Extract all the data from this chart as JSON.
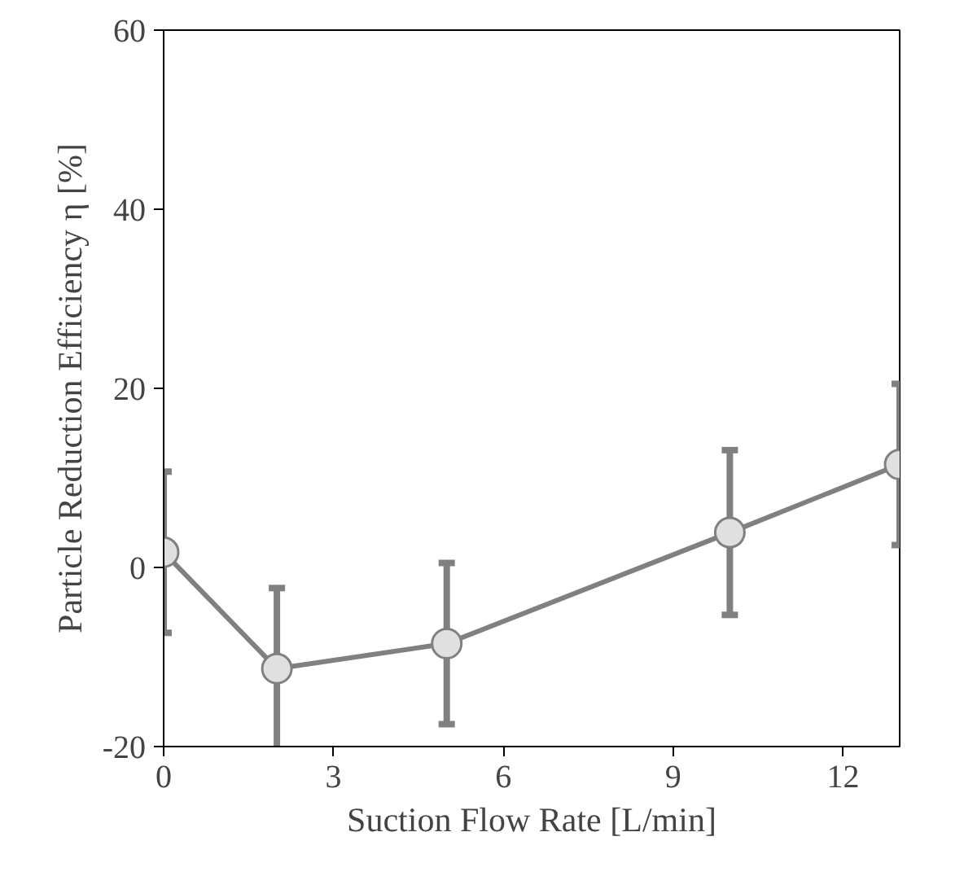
{
  "chart_data": {
    "type": "line",
    "xlabel": "Suction Flow Rate [L/min]",
    "ylabel": "Particle Reduction Efficiency η [%]",
    "x": [
      0,
      2,
      5,
      10,
      13
    ],
    "series": [
      {
        "color": "#808080",
        "values": [
          1.7,
          -11.3,
          -8.5,
          3.9,
          11.5
        ],
        "errors": [
          9,
          9,
          9,
          9.2,
          9
        ]
      }
    ],
    "xlim": [
      0,
      13
    ],
    "xticks": [
      0,
      3,
      6,
      9,
      12
    ],
    "ylim": [
      -20,
      60
    ],
    "yticks": [
      {
        "value": -20,
        "label": "-20"
      },
      0,
      20,
      40,
      60
    ],
    "marker": "circle",
    "line_style": "solid",
    "grid": false
  }
}
